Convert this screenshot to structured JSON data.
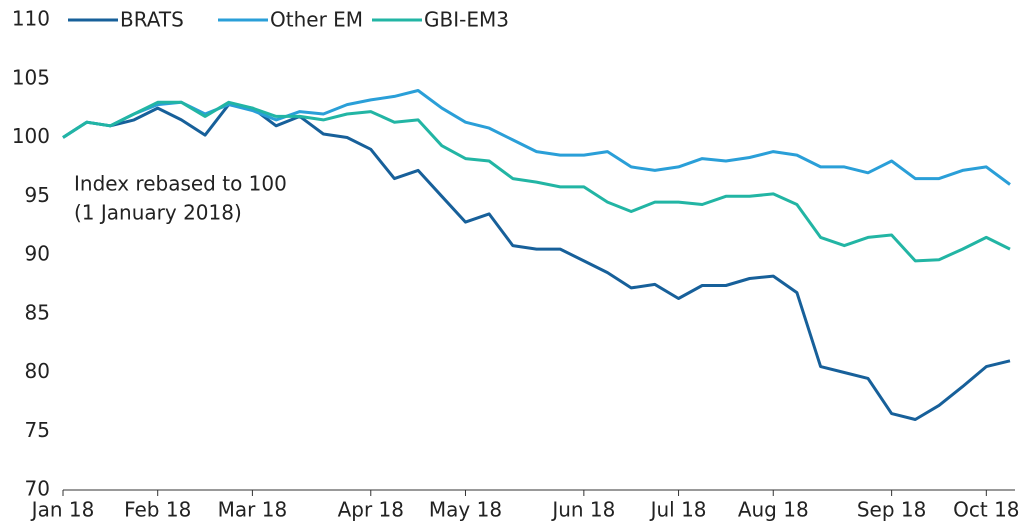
{
  "chart_data": {
    "type": "line",
    "annotation": [
      "Index rebased to 100",
      "(1 January 2018)"
    ],
    "categories": [
      "Jan 18",
      null,
      null,
      null,
      "Feb 18",
      null,
      null,
      null,
      "Mar 18",
      null,
      null,
      null,
      null,
      "Apr 18",
      null,
      null,
      null,
      "May 18",
      null,
      null,
      null,
      null,
      "Jun 18",
      null,
      null,
      null,
      "Jul 18",
      null,
      null,
      null,
      "Aug 18",
      null,
      null,
      null,
      null,
      "Sep 18",
      null,
      null,
      null,
      "Oct 18",
      null
    ],
    "series": [
      {
        "name": "BRATS",
        "color": "#17609a",
        "values": [
          100,
          101.3,
          101,
          101.5,
          102.5,
          101.5,
          100.2,
          102.8,
          102.5,
          101,
          101.8,
          100.3,
          100,
          99,
          96.5,
          97.2,
          95,
          92.8,
          93.5,
          90.8,
          90.5,
          90.5,
          89.5,
          88.5,
          87.2,
          87.5,
          86.3,
          87.4,
          87.4,
          88,
          88.2,
          86.8,
          80.5,
          80,
          79.5,
          76.5,
          76,
          77.2,
          78.8,
          80.5,
          81
        ]
      },
      {
        "name": "Other EM",
        "color": "#2a9fd8",
        "values": [
          100,
          101.3,
          101,
          102,
          102.8,
          103,
          102,
          102.8,
          102.3,
          101.5,
          102.2,
          102,
          102.8,
          103.2,
          103.5,
          104,
          102.5,
          101.3,
          100.8,
          99.8,
          98.8,
          98.5,
          98.5,
          98.8,
          97.5,
          97.2,
          97.5,
          98.2,
          98,
          98.3,
          98.8,
          98.5,
          97.5,
          97.5,
          97,
          98,
          96.5,
          96.5,
          97.2,
          97.5,
          96
        ]
      },
      {
        "name": "GBI-EM3",
        "color": "#22b5a4",
        "values": [
          100,
          101.3,
          101,
          102,
          103,
          103,
          101.8,
          103,
          102.5,
          101.8,
          101.8,
          101.5,
          102,
          102.2,
          101.3,
          101.5,
          99.3,
          98.2,
          98,
          96.5,
          96.2,
          95.8,
          95.8,
          94.5,
          93.7,
          94.5,
          94.5,
          94.3,
          95,
          95,
          95.2,
          94.3,
          91.5,
          90.8,
          91.5,
          91.7,
          89.5,
          89.6,
          90.5,
          91.5,
          90.5
        ]
      }
    ],
    "ylim": [
      70,
      110
    ],
    "yticks": [
      70,
      75,
      80,
      85,
      90,
      95,
      100,
      105,
      110
    ],
    "grid": false,
    "legend": "top"
  }
}
